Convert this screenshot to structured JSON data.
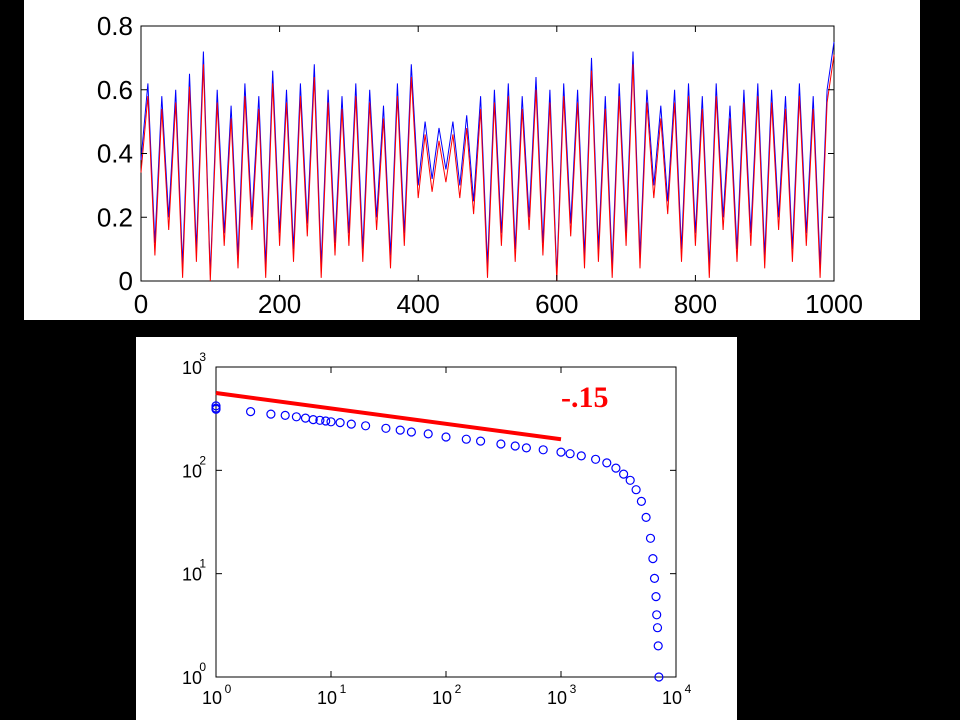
{
  "chart_data": [
    {
      "type": "line",
      "xlim": [
        0,
        1000
      ],
      "ylim": [
        0,
        0.8
      ],
      "x_ticks": [
        "0",
        "200",
        "400",
        "600",
        "800",
        "1000"
      ],
      "y_ticks": [
        "0",
        "0.2",
        "0.4",
        "0.6",
        "0.8"
      ],
      "grid": false,
      "series": [
        {
          "color": "#0000ff",
          "values": "1000 oscillating samples, roughly 0.05–0.75"
        },
        {
          "color": "#ff0000",
          "values": "1000 oscillating samples, roughly 0.0–0.72"
        }
      ],
      "points": [
        [
          0,
          0.38
        ],
        [
          10,
          0.62
        ],
        [
          20,
          0.12
        ],
        [
          30,
          0.58
        ],
        [
          40,
          0.2
        ],
        [
          50,
          0.6
        ],
        [
          60,
          0.05
        ],
        [
          70,
          0.65
        ],
        [
          80,
          0.1
        ],
        [
          90,
          0.72
        ],
        [
          100,
          0.02
        ],
        [
          110,
          0.6
        ],
        [
          120,
          0.15
        ],
        [
          130,
          0.55
        ],
        [
          140,
          0.08
        ],
        [
          150,
          0.62
        ],
        [
          160,
          0.2
        ],
        [
          170,
          0.58
        ],
        [
          180,
          0.05
        ],
        [
          190,
          0.66
        ],
        [
          200,
          0.15
        ],
        [
          210,
          0.6
        ],
        [
          220,
          0.1
        ],
        [
          230,
          0.62
        ],
        [
          240,
          0.18
        ],
        [
          250,
          0.68
        ],
        [
          260,
          0.05
        ],
        [
          270,
          0.6
        ],
        [
          280,
          0.12
        ],
        [
          290,
          0.58
        ],
        [
          300,
          0.15
        ],
        [
          310,
          0.62
        ],
        [
          320,
          0.1
        ],
        [
          330,
          0.6
        ],
        [
          340,
          0.2
        ],
        [
          350,
          0.55
        ],
        [
          360,
          0.08
        ],
        [
          370,
          0.62
        ],
        [
          380,
          0.15
        ],
        [
          390,
          0.68
        ],
        [
          400,
          0.3
        ],
        [
          410,
          0.5
        ],
        [
          420,
          0.32
        ],
        [
          430,
          0.48
        ],
        [
          440,
          0.35
        ],
        [
          450,
          0.5
        ],
        [
          460,
          0.3
        ],
        [
          470,
          0.52
        ],
        [
          480,
          0.25
        ],
        [
          490,
          0.58
        ],
        [
          500,
          0.05
        ],
        [
          510,
          0.6
        ],
        [
          520,
          0.15
        ],
        [
          530,
          0.62
        ],
        [
          540,
          0.1
        ],
        [
          550,
          0.58
        ],
        [
          560,
          0.2
        ],
        [
          570,
          0.64
        ],
        [
          580,
          0.12
        ],
        [
          590,
          0.6
        ],
        [
          600,
          0.02
        ],
        [
          610,
          0.62
        ],
        [
          620,
          0.18
        ],
        [
          630,
          0.6
        ],
        [
          640,
          0.08
        ],
        [
          650,
          0.7
        ],
        [
          660,
          0.1
        ],
        [
          670,
          0.58
        ],
        [
          680,
          0.05
        ],
        [
          690,
          0.62
        ],
        [
          700,
          0.15
        ],
        [
          710,
          0.72
        ],
        [
          720,
          0.08
        ],
        [
          730,
          0.6
        ],
        [
          740,
          0.3
        ],
        [
          750,
          0.55
        ],
        [
          760,
          0.25
        ],
        [
          770,
          0.6
        ],
        [
          780,
          0.1
        ],
        [
          790,
          0.62
        ],
        [
          800,
          0.15
        ],
        [
          810,
          0.58
        ],
        [
          820,
          0.05
        ],
        [
          830,
          0.62
        ],
        [
          840,
          0.2
        ],
        [
          850,
          0.55
        ],
        [
          860,
          0.1
        ],
        [
          870,
          0.6
        ],
        [
          880,
          0.15
        ],
        [
          890,
          0.62
        ],
        [
          900,
          0.08
        ],
        [
          910,
          0.6
        ],
        [
          920,
          0.2
        ],
        [
          930,
          0.58
        ],
        [
          940,
          0.1
        ],
        [
          950,
          0.62
        ],
        [
          960,
          0.15
        ],
        [
          970,
          0.58
        ],
        [
          980,
          0.05
        ],
        [
          990,
          0.6
        ],
        [
          1000,
          0.75
        ]
      ]
    },
    {
      "type": "scatter",
      "x_scale": "log",
      "y_scale": "log",
      "xlim": [
        1,
        10000
      ],
      "ylim": [
        1,
        1000
      ],
      "x_ticks": [
        {
          "base": "10",
          "exp": "0"
        },
        {
          "base": "10",
          "exp": "1"
        },
        {
          "base": "10",
          "exp": "2"
        },
        {
          "base": "10",
          "exp": "3"
        },
        {
          "base": "10",
          "exp": "4"
        }
      ],
      "y_ticks": [
        {
          "base": "10",
          "exp": "0"
        },
        {
          "base": "10",
          "exp": "1"
        },
        {
          "base": "10",
          "exp": "2"
        },
        {
          "base": "10",
          "exp": "3"
        }
      ],
      "grid": false,
      "marker_color": "#0000ff",
      "annotation": "-.15",
      "fit_line": {
        "color": "#ff0000",
        "slope": -0.15,
        "x": [
          1,
          1000
        ],
        "y": [
          560,
          200
        ]
      },
      "points": [
        [
          1,
          420
        ],
        [
          1,
          400
        ],
        [
          1,
          390
        ],
        [
          2,
          370
        ],
        [
          3,
          350
        ],
        [
          4,
          340
        ],
        [
          5,
          330
        ],
        [
          6,
          320
        ],
        [
          7,
          310
        ],
        [
          8,
          305
        ],
        [
          9,
          300
        ],
        [
          10,
          295
        ],
        [
          12,
          290
        ],
        [
          15,
          280
        ],
        [
          20,
          270
        ],
        [
          30,
          255
        ],
        [
          40,
          245
        ],
        [
          50,
          235
        ],
        [
          70,
          225
        ],
        [
          100,
          210
        ],
        [
          150,
          200
        ],
        [
          200,
          192
        ],
        [
          300,
          180
        ],
        [
          400,
          172
        ],
        [
          500,
          165
        ],
        [
          700,
          158
        ],
        [
          1000,
          150
        ],
        [
          1200,
          145
        ],
        [
          1500,
          138
        ],
        [
          2000,
          128
        ],
        [
          2500,
          118
        ],
        [
          3000,
          105
        ],
        [
          3500,
          92
        ],
        [
          4000,
          80
        ],
        [
          4500,
          65
        ],
        [
          5000,
          50
        ],
        [
          5500,
          35
        ],
        [
          6000,
          22
        ],
        [
          6300,
          14
        ],
        [
          6500,
          9
        ],
        [
          6700,
          6
        ],
        [
          6800,
          4
        ],
        [
          6900,
          3
        ],
        [
          7000,
          2
        ],
        [
          7100,
          1
        ]
      ]
    }
  ]
}
